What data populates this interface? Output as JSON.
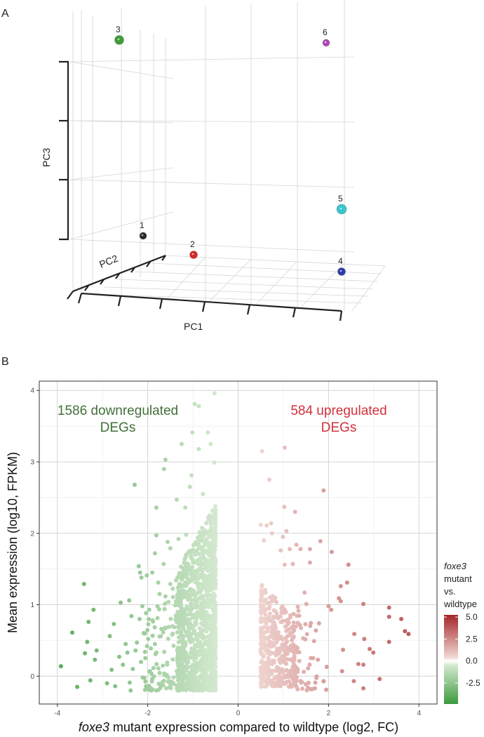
{
  "panel_labels": {
    "a": "A",
    "b": "B"
  },
  "pca": {
    "axes": {
      "pc1": "PC1",
      "pc2": "PC2",
      "pc3": "PC3"
    },
    "samples": [
      {
        "label": "1",
        "color": "#2b2b2b"
      },
      {
        "label": "2",
        "color": "#d42a2a"
      },
      {
        "label": "3",
        "color": "#3f9c3a"
      },
      {
        "label": "4",
        "color": "#2c3ea8"
      },
      {
        "label": "5",
        "color": "#3cc6cc"
      },
      {
        "label": "6",
        "color": "#b046b8"
      }
    ]
  },
  "chart_data": {
    "type": "scatter",
    "xlabel_italic": "foxe3",
    "xlabel_rest": " mutant expression compared to wildtype (log2, FC)",
    "ylabel": "Mean expression (log10, FPKM)",
    "xlim": [
      -4.4,
      4.4
    ],
    "ylim": [
      -0.39,
      4.13
    ],
    "xticks": [
      "-4",
      "-2",
      "0",
      "2",
      "4"
    ],
    "xtick_values": [
      -4,
      -2,
      0,
      2,
      4
    ],
    "yticks": [
      "0",
      "1",
      "2",
      "3",
      "4"
    ],
    "ytick_values": [
      0,
      1,
      2,
      3,
      4
    ],
    "grid": true,
    "annotations": {
      "down_line1": "1586 downregulated",
      "down_line2": "DEGs",
      "down_color": "#42703a",
      "up_line1": "584 upregulated",
      "up_line2": "DEGs",
      "up_color": "#d1303a"
    },
    "legend": {
      "title_italic": "foxe3",
      "title_line2": "mutant",
      "title_line3": "vs.",
      "title_line4": "wildtype",
      "placement": "right",
      "breaks": [
        "5.0",
        "2.5",
        "0.0",
        "-2.5"
      ],
      "break_values": [
        5.0,
        2.5,
        0.0,
        -2.5
      ],
      "range": [
        -4.9,
        5.25
      ],
      "color_stops": [
        {
          "v": -4.9,
          "c": "#3b9a3d"
        },
        {
          "v": -0.5,
          "c": "#d4e8d0"
        },
        {
          "v": 0.0,
          "c": "#ffffff"
        },
        {
          "v": 0.5,
          "c": "#efd3cf"
        },
        {
          "v": 5.25,
          "c": "#a3262a"
        }
      ]
    },
    "points": [
      [
        -3.92,
        0.14
      ],
      [
        -3.67,
        0.61
      ],
      [
        -3.56,
        -0.15
      ],
      [
        -3.41,
        1.29
      ],
      [
        -3.39,
        0.32
      ],
      [
        -3.34,
        0.48
      ],
      [
        -3.31,
        0.76
      ],
      [
        -3.27,
        -0.06
      ],
      [
        -3.2,
        0.93
      ],
      [
        -3.17,
        0.23
      ],
      [
        -3.13,
        0.36
      ],
      [
        -2.9,
        -0.1
      ],
      [
        -2.84,
        0.56
      ],
      [
        -2.8,
        0.09
      ],
      [
        -2.75,
        0.73
      ],
      [
        -2.72,
        -0.14
      ],
      [
        -2.63,
        0.27
      ],
      [
        -2.6,
        1.03
      ],
      [
        -2.55,
        0.16
      ],
      [
        -2.49,
        0.45
      ],
      [
        -2.45,
        0.33
      ],
      [
        -2.41,
        1.06
      ],
      [
        -2.4,
        -0.09
      ],
      [
        -2.38,
        -0.2
      ],
      [
        -2.36,
        0.84
      ],
      [
        -2.33,
        0.1
      ],
      [
        -2.29,
        2.68
      ],
      [
        -2.27,
        0.36
      ],
      [
        -2.24,
        0.47
      ],
      [
        -2.2,
        1.54
      ],
      [
        -2.18,
        0.8
      ],
      [
        -2.17,
        1.45
      ],
      [
        -2.15,
        0.2
      ],
      [
        -2.14,
        1.38
      ],
      [
        -2.12,
        0.98
      ],
      [
        -2.11,
        -0.02
      ],
      [
        -2.06,
        0.34
      ],
      [
        -2.04,
        -0.14
      ],
      [
        -2.02,
        1.41
      ],
      [
        -1.99,
        0.52
      ],
      [
        -1.95,
        0.07
      ],
      [
        -1.92,
        -0.2
      ],
      [
        -1.9,
        1.45
      ],
      [
        -1.84,
        1.72
      ],
      [
        -1.81,
        2.36
      ],
      [
        -1.81,
        1.97
      ],
      [
        -1.77,
        1.31
      ],
      [
        -1.74,
        1.15
      ],
      [
        -1.7,
        0.66
      ],
      [
        -1.64,
        2.9
      ],
      [
        -1.61,
        3.03
      ],
      [
        -1.65,
        1.57
      ],
      [
        -1.56,
        1.88
      ],
      [
        -1.5,
        1.79
      ],
      [
        -1.5,
        1.29
      ],
      [
        -1.36,
        2.47
      ],
      [
        -1.32,
        1.92
      ],
      [
        -1.25,
        3.25
      ],
      [
        -1.17,
        2.36
      ],
      [
        -1.15,
        1.98
      ],
      [
        -1.07,
        2.65
      ],
      [
        -1.03,
        2.81
      ],
      [
        -1.01,
        3.41
      ],
      [
        -0.96,
        3.81
      ],
      [
        -0.87,
        3.78
      ],
      [
        -0.87,
        3.18
      ],
      [
        -0.78,
        2.55
      ],
      [
        -0.67,
        3.41
      ],
      [
        -0.61,
        3.25
      ],
      [
        -0.52,
        3.96
      ],
      [
        -0.53,
        2.99
      ],
      [
        -1.57,
        0.19
      ],
      [
        0.53,
        3.15
      ],
      [
        1.03,
        3.2
      ],
      [
        0.69,
        2.75
      ],
      [
        1.89,
        2.6
      ],
      [
        1.02,
        2.37
      ],
      [
        1.26,
        2.3
      ],
      [
        0.5,
        2.12
      ],
      [
        0.63,
        2.11
      ],
      [
        0.73,
        2.14
      ],
      [
        0.75,
        2.0
      ],
      [
        1.07,
        2.03
      ],
      [
        0.99,
        1.95
      ],
      [
        0.57,
        1.9
      ],
      [
        1.82,
        1.89
      ],
      [
        1.29,
        1.84
      ],
      [
        1.14,
        1.78
      ],
      [
        1.38,
        1.78
      ],
      [
        1.59,
        1.78
      ],
      [
        0.94,
        1.76
      ],
      [
        2.07,
        1.74
      ],
      [
        2.44,
        1.56
      ],
      [
        1.59,
        1.59
      ],
      [
        1.21,
        1.57
      ],
      [
        1.03,
        1.56
      ],
      [
        2.41,
        1.31
      ],
      [
        2.27,
        1.26
      ],
      [
        2.23,
        1.09
      ],
      [
        2.27,
        1.05
      ],
      [
        2.77,
        1.01
      ],
      [
        3.34,
        0.96
      ],
      [
        2.0,
        0.98
      ],
      [
        2.06,
        0.93
      ],
      [
        3.34,
        0.83
      ],
      [
        3.61,
        0.8
      ],
      [
        3.69,
        0.63
      ],
      [
        3.77,
        0.59
      ],
      [
        2.57,
        0.59
      ],
      [
        2.79,
        0.52
      ],
      [
        3.34,
        0.48
      ],
      [
        2.32,
        0.37
      ],
      [
        2.91,
        0.38
      ],
      [
        2.99,
        0.33
      ],
      [
        2.66,
        0.17
      ],
      [
        2.77,
        0.16
      ],
      [
        2.3,
        0.07
      ],
      [
        3.13,
        -0.04
      ],
      [
        2.56,
        -0.07
      ],
      [
        2.77,
        -0.17
      ],
      [
        1.95,
        -0.19
      ],
      [
        1.79,
        0.74
      ],
      [
        1.68,
        0.49
      ],
      [
        1.72,
        0.64
      ],
      [
        1.96,
        0.13
      ],
      [
        1.89,
        -0.07
      ],
      [
        1.7,
        -0.17
      ],
      [
        1.47,
        1.17
      ],
      [
        1.51,
        1.01
      ],
      [
        1.32,
        0.97
      ]
    ],
    "dense_clusters": [
      {
        "name": "down-core",
        "x": [
          -1.35,
          -0.5
        ],
        "y": [
          -0.2,
          2.4
        ],
        "n": 1250,
        "toward": "right"
      },
      {
        "name": "down-mid",
        "x": [
          -2.1,
          -1.2
        ],
        "y": [
          -0.2,
          1.5
        ],
        "n": 160,
        "toward": "right"
      },
      {
        "name": "up-core",
        "x": [
          0.5,
          1.3
        ],
        "y": [
          -0.15,
          1.3
        ],
        "n": 400,
        "toward": "left"
      },
      {
        "name": "up-mid",
        "x": [
          1.2,
          1.9
        ],
        "y": [
          -0.2,
          1.0
        ],
        "n": 60,
        "toward": "left"
      }
    ]
  }
}
